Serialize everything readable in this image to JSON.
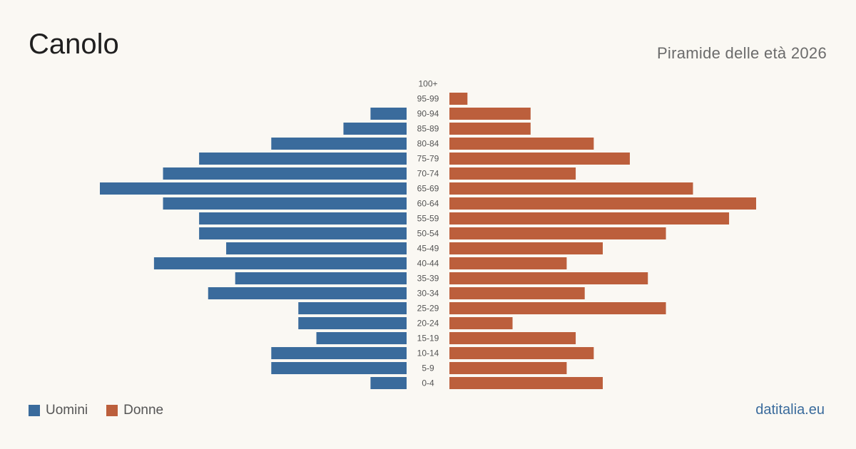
{
  "header": {
    "title": "Canolo",
    "subtitle": "Piramide delle età 2026"
  },
  "legend": {
    "men_label": "Uomini",
    "women_label": "Donne"
  },
  "source": "datitalia.eu",
  "colors": {
    "men": "#3a6b9c",
    "women": "#bc5f3c",
    "background": "#faf8f3",
    "label": "#555555"
  },
  "chart_data": {
    "type": "bar",
    "orientation": "horizontal-pyramid",
    "title": "Canolo",
    "subtitle": "Piramide delle età 2026",
    "categories": [
      "100+",
      "95-99",
      "90-94",
      "85-89",
      "80-84",
      "75-79",
      "70-74",
      "65-69",
      "60-64",
      "55-59",
      "50-54",
      "45-49",
      "40-44",
      "35-39",
      "30-34",
      "25-29",
      "20-24",
      "15-19",
      "10-14",
      "5-9",
      "0-4"
    ],
    "series": [
      {
        "name": "Uomini",
        "values": [
          0,
          0,
          4,
          7,
          15,
          23,
          27,
          34,
          27,
          23,
          23,
          20,
          28,
          19,
          22,
          12,
          12,
          10,
          15,
          15,
          4
        ]
      },
      {
        "name": "Donne",
        "values": [
          0,
          2,
          9,
          9,
          16,
          20,
          14,
          27,
          34,
          31,
          24,
          17,
          13,
          22,
          15,
          24,
          7,
          14,
          16,
          13,
          17
        ]
      }
    ],
    "xlim": [
      0,
      34
    ],
    "grid": false,
    "legend_position": "bottom-left"
  }
}
